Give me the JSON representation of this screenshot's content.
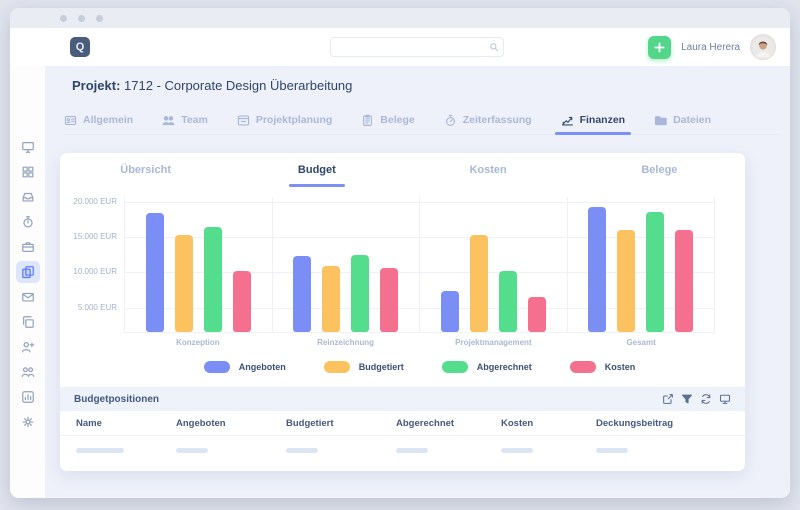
{
  "header": {
    "user_name": "Laura Herera",
    "search_placeholder": "",
    "add_button": "+"
  },
  "project": {
    "label": "Projekt:",
    "title": "1712 - Corporate Design Überarbeitung"
  },
  "project_tabs": [
    {
      "label": "Allgemein",
      "icon": "id-card-icon",
      "active": false
    },
    {
      "label": "Team",
      "icon": "team-icon",
      "active": false
    },
    {
      "label": "Projektplanung",
      "icon": "planning-icon",
      "active": false
    },
    {
      "label": "Belege",
      "icon": "clipboard-icon",
      "active": false
    },
    {
      "label": "Zeiterfassung",
      "icon": "stopwatch-icon",
      "active": false
    },
    {
      "label": "Finanzen",
      "icon": "finance-chart-icon",
      "active": true
    },
    {
      "label": "Dateien",
      "icon": "folder-icon",
      "active": false
    }
  ],
  "finance_tabs": [
    {
      "label": "Übersicht",
      "active": false
    },
    {
      "label": "Budget",
      "active": true
    },
    {
      "label": "Kosten",
      "active": false
    },
    {
      "label": "Belege",
      "active": false
    }
  ],
  "chart_data": {
    "type": "bar",
    "title": "",
    "xlabel": "",
    "ylabel": "EUR",
    "categories": [
      "Konzeption",
      "Reinzeichnung",
      "Projektmanagement",
      "Gesamt"
    ],
    "series": [
      {
        "name": "Angeboten",
        "color": "#7b8ef5",
        "values": [
          18600,
          12500,
          7500,
          19400
        ]
      },
      {
        "name": "Budgetiert",
        "color": "#fbc25f",
        "values": [
          15400,
          11000,
          15400,
          16200
        ]
      },
      {
        "name": "Abgerechnet",
        "color": "#54dd8d",
        "values": [
          16500,
          12600,
          10400,
          18700
        ]
      },
      {
        "name": "Kosten",
        "color": "#f56f8e",
        "values": [
          10400,
          10700,
          6600,
          16100
        ]
      }
    ],
    "yticks": [
      {
        "value": 5000,
        "label": "5.000 EUR"
      },
      {
        "value": 10000,
        "label": "10.000 EUR"
      },
      {
        "value": 15000,
        "label": "15.000 EUR"
      },
      {
        "value": 20000,
        "label": "20.000 EUR"
      }
    ],
    "ylim": [
      1700,
      20800
    ],
    "grid": true,
    "legend_position": "bottom"
  },
  "table": {
    "title": "Budgetpositionen",
    "toolbar_icons": [
      "export-icon",
      "filter-icon",
      "refresh-icon",
      "monitor-icon"
    ],
    "columns": [
      "Name",
      "Angeboten",
      "Budgetiert",
      "Abgerechnet",
      "Kosten",
      "Deckungsbeitrag"
    ],
    "skeleton_rows": 1
  },
  "sidebar": {
    "items": [
      {
        "icon": "monitor-icon",
        "active": false
      },
      {
        "icon": "dashboard-icon",
        "active": false
      },
      {
        "icon": "inbox-icon",
        "active": false
      },
      {
        "icon": "clock-icon",
        "active": false
      },
      {
        "icon": "briefcase-icon",
        "active": false
      },
      {
        "icon": "documents-icon",
        "active": true
      },
      {
        "icon": "message-icon",
        "active": false
      },
      {
        "icon": "copy-icon",
        "active": false
      },
      {
        "icon": "user-add-icon",
        "active": false
      },
      {
        "icon": "people-icon",
        "active": false
      },
      {
        "icon": "chart-box-icon",
        "active": false
      },
      {
        "icon": "gear-icon",
        "active": false
      }
    ]
  },
  "colors": {
    "accent": "#7b8ff5",
    "add_button": "#53d68a",
    "active_tab_text": "#35496b",
    "inactive_tab_text": "#a9b8d8",
    "sidebar_active_bg": "#dde6fd",
    "sidebar_active_icon": "#5b79f7",
    "table_bar_bg": "#eef3fb"
  },
  "logo_text": "Q"
}
